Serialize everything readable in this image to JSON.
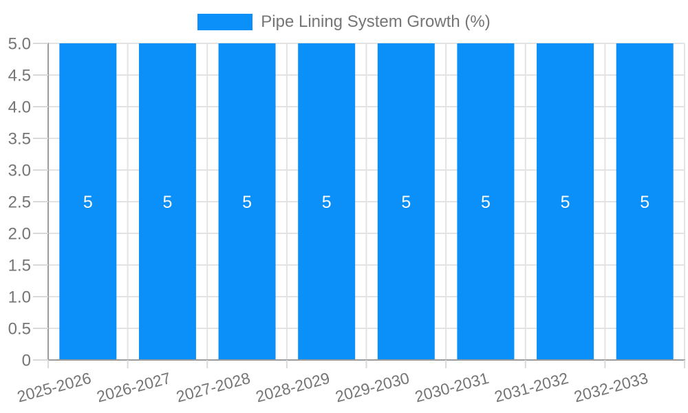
{
  "legend": {
    "label": "Pipe Lining System Growth (%)"
  },
  "chart_data": {
    "type": "bar",
    "title": "Pipe Lining System Growth (%)",
    "categories": [
      "2025-2026",
      "2026-2027",
      "2027-2028",
      "2028-2029",
      "2029-2030",
      "2030-2031",
      "2031-2032",
      "2032-2033"
    ],
    "series": [
      {
        "name": "Pipe Lining System Growth (%)",
        "values": [
          5,
          5,
          5,
          5,
          5,
          5,
          5,
          5
        ]
      }
    ],
    "bar_value_labels": [
      "5",
      "5",
      "5",
      "5",
      "5",
      "5",
      "5",
      "5"
    ],
    "xlabel": "",
    "ylabel": "",
    "ylim": [
      0,
      5
    ],
    "y_tick_step": 0.5,
    "y_tick_labels": [
      "0",
      "0.5",
      "1.0",
      "1.5",
      "2.0",
      "2.5",
      "3.0",
      "3.5",
      "4.0",
      "4.5",
      "5.0"
    ],
    "grid": true,
    "legend_position": "top-center",
    "colors": {
      "bar": "#0A90F8",
      "bar_label": "#FFFFFF",
      "grid_line": "#E3E3E3",
      "tick_line": "#D9D9D9",
      "axis_line": "#9B9B9B",
      "text": "#757575"
    }
  }
}
